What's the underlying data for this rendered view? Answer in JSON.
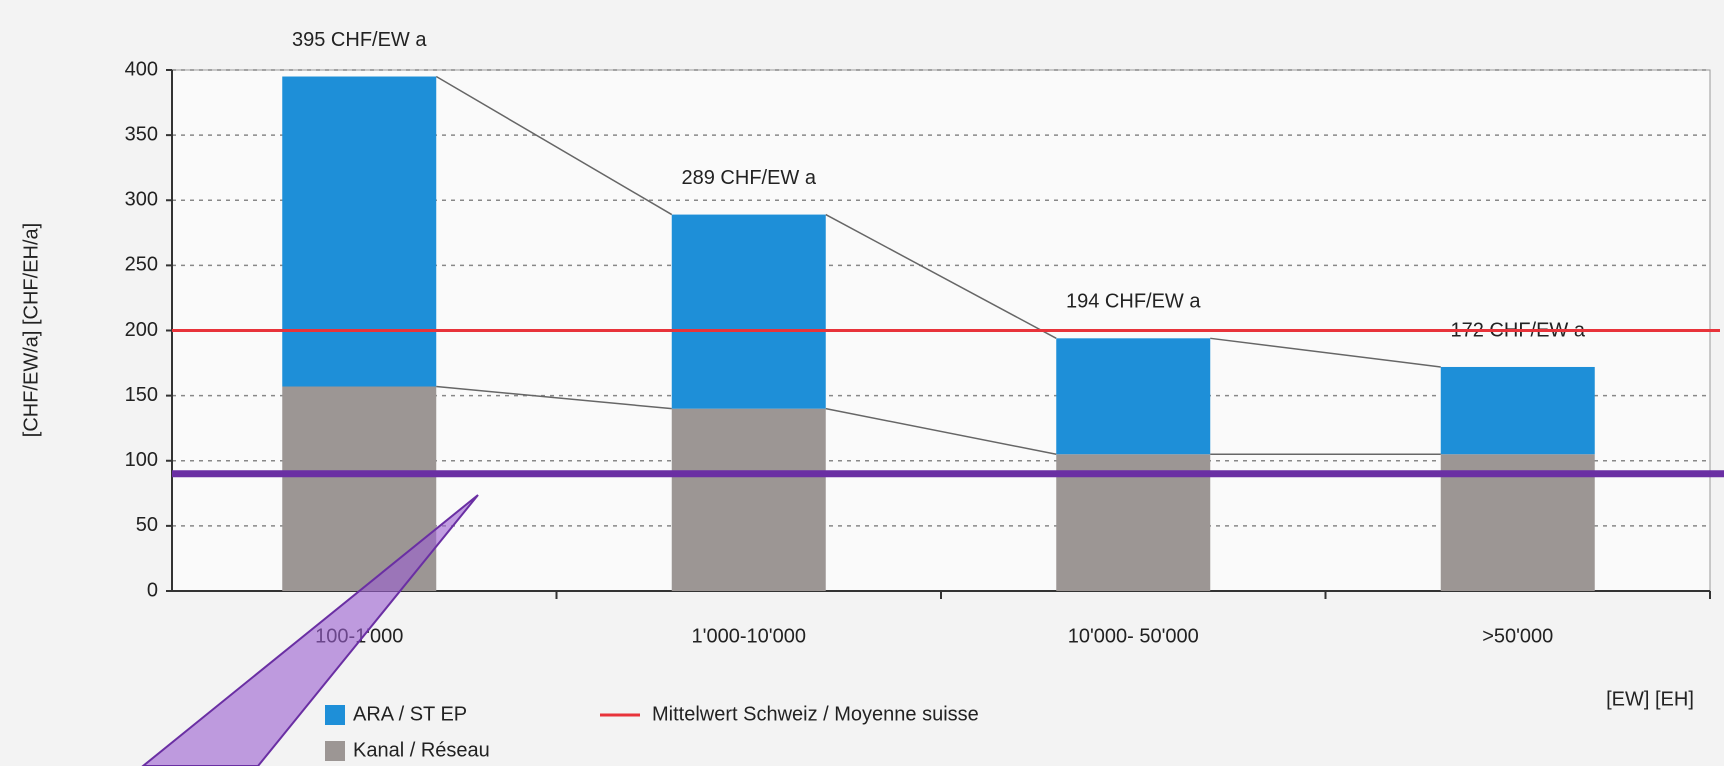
{
  "chart_data": {
    "type": "bar",
    "stacked": true,
    "y_label": "[CHF/EW/a]  [CHF/EH/a]",
    "x_unit_label": "[EW]  [EH]",
    "categories": [
      "100-1'000",
      "1'000-10'000",
      "10'000- 50'000",
      ">50'000"
    ],
    "series": [
      {
        "name": "Kanal / Réseau",
        "color": "#9c9694",
        "values": [
          157,
          140,
          105,
          105
        ]
      },
      {
        "name": "ARA / ST EP",
        "color": "#1e8fd8",
        "values": [
          238,
          149,
          89,
          67
        ]
      }
    ],
    "totals": [
      395,
      289,
      194,
      172
    ],
    "total_labels": [
      "395 CHF/EW a",
      "289 CHF/EW a",
      "194 CHF/EW a",
      "172 CHF/EW a"
    ],
    "reference_line": {
      "name": "Mittelwert Schweiz / Moyenne suisse",
      "value": 200,
      "color": "#e8333a"
    },
    "highlight_line": {
      "value": 90,
      "color": "#6a2fa3"
    },
    "ylim": [
      0,
      400
    ],
    "yticks": [
      0,
      50,
      100,
      150,
      200,
      250,
      300,
      350,
      400
    ],
    "grid": true
  }
}
